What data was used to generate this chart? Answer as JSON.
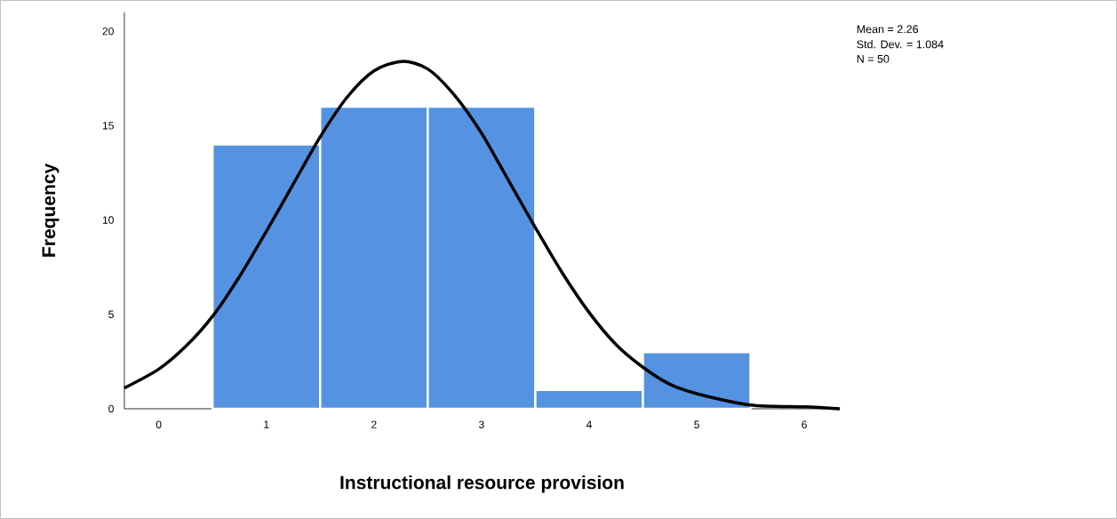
{
  "chart_data": {
    "type": "histogram",
    "xlabel": "Instructional resource provision",
    "ylabel": "Frequency",
    "annotations": [
      "Mean = 2.26",
      "Std. Dev. = 1.084",
      "N = 50"
    ],
    "bins": [
      0.5,
      1.5,
      2.5,
      3.5,
      4.5,
      5.5
    ],
    "values": [
      14,
      16,
      16,
      1,
      3
    ],
    "color": "#5593e2",
    "series": [
      {
        "type": "line",
        "color": "#000000",
        "x": [
          -0.32,
          0,
          0.25,
          0.5,
          0.75,
          1,
          1.25,
          1.5,
          1.75,
          2,
          2.26,
          2.5,
          2.75,
          3,
          3.25,
          3.5,
          3.75,
          4,
          4.25,
          4.5,
          4.75,
          5,
          5.5,
          6,
          6.33
        ],
        "values": [
          1.1,
          2.1,
          3.3,
          4.9,
          7.0,
          9.4,
          11.9,
          14.4,
          16.5,
          17.9,
          18.4,
          18.0,
          16.6,
          14.6,
          12.1,
          9.6,
          7.2,
          5.1,
          3.4,
          2.2,
          1.3,
          0.8,
          0.2,
          0.1,
          0.0
        ]
      }
    ],
    "xlim": [
      -0.32,
      6.33
    ],
    "ylim": [
      0,
      21
    ],
    "xticks": [
      0,
      1,
      2,
      3,
      4,
      5,
      6
    ],
    "yticks": [
      0,
      5,
      10,
      15,
      20
    ],
    "grid": false
  }
}
